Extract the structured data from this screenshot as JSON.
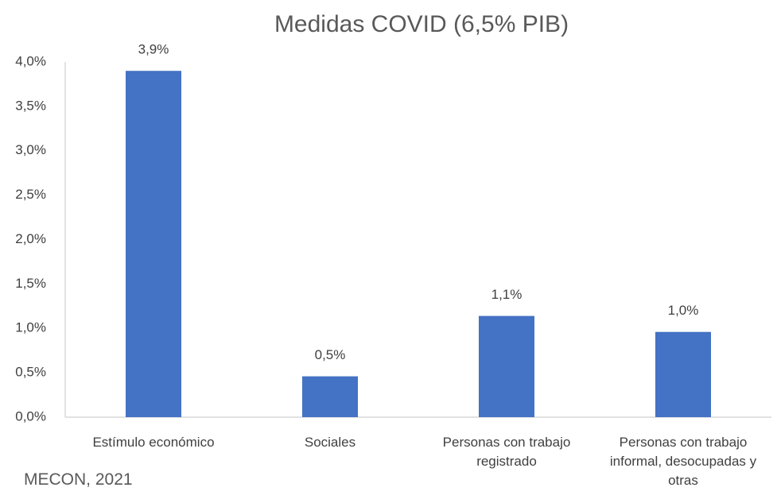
{
  "chart_data": {
    "type": "bar",
    "title": "Medidas COVID (6,5% PIB)",
    "categories": [
      "Estímulo económico",
      "Sociales",
      "Personas con trabajo registrado",
      "Personas con trabajo informal, desocupadas y otras"
    ],
    "values": [
      3.9,
      0.46,
      1.14,
      0.96
    ],
    "value_labels": [
      "3,9%",
      "0,5%",
      "1,1%",
      "1,0%"
    ],
    "color": "#4472c4",
    "ylim": [
      0,
      4
    ],
    "yticks": [
      {
        "value": 0,
        "label": "0,0%"
      },
      {
        "value": 0.5,
        "label": "0,5%"
      },
      {
        "value": 1,
        "label": "1,0%"
      },
      {
        "value": 1.5,
        "label": "1,5%"
      },
      {
        "value": 2,
        "label": "2,0%"
      },
      {
        "value": 2.5,
        "label": "2,5%"
      },
      {
        "value": 3,
        "label": "3,0%"
      },
      {
        "value": 3.5,
        "label": "3,5%"
      },
      {
        "value": 4,
        "label": "4,0%"
      }
    ],
    "grid": false,
    "source": "MECON, 2021"
  }
}
